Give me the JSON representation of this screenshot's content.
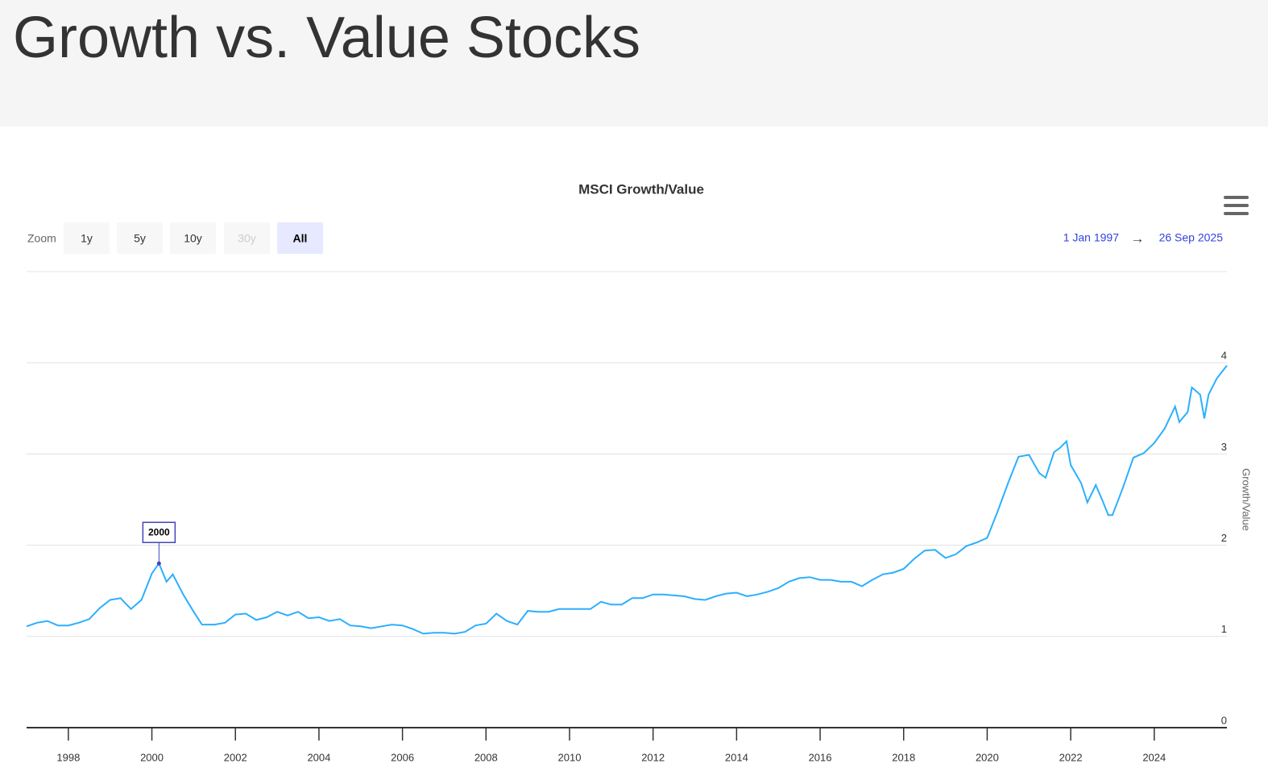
{
  "page_title": "Growth vs. Value Stocks",
  "range_selector": {
    "zoom_label": "Zoom",
    "buttons": [
      "1y",
      "5y",
      "10y",
      "30y",
      "All"
    ],
    "selected": 4,
    "disabled": [
      3
    ],
    "from": "1 Jan 1997",
    "arrow": "→",
    "to": "26 Sep 2025"
  },
  "chart_data": {
    "type": "line",
    "title": "MSCI Growth/Value",
    "y_axis_label": "Growth/Value",
    "x": [
      1997.0,
      1997.25,
      1997.5,
      1997.75,
      1998.0,
      1998.25,
      1998.5,
      1998.75,
      1999.0,
      1999.25,
      1999.5,
      1999.75,
      2000.0,
      2000.17,
      2000.35,
      2000.5,
      2000.75,
      2001.0,
      2001.2,
      2001.5,
      2001.75,
      2002.0,
      2002.25,
      2002.5,
      2002.75,
      2003.0,
      2003.25,
      2003.5,
      2003.75,
      2004.0,
      2004.25,
      2004.5,
      2004.75,
      2005.0,
      2005.25,
      2005.5,
      2005.75,
      2006.0,
      2006.25,
      2006.5,
      2006.75,
      2007.0,
      2007.25,
      2007.5,
      2007.75,
      2008.0,
      2008.25,
      2008.5,
      2008.75,
      2009.0,
      2009.25,
      2009.5,
      2009.75,
      2010.0,
      2010.25,
      2010.5,
      2010.75,
      2011.0,
      2011.25,
      2011.5,
      2011.75,
      2012.0,
      2012.25,
      2012.5,
      2012.75,
      2013.0,
      2013.25,
      2013.5,
      2013.75,
      2014.0,
      2014.25,
      2014.5,
      2014.75,
      2015.0,
      2015.25,
      2015.5,
      2015.75,
      2016.0,
      2016.25,
      2016.5,
      2016.75,
      2017.0,
      2017.25,
      2017.5,
      2017.75,
      2018.0,
      2018.25,
      2018.5,
      2018.75,
      2019.0,
      2019.25,
      2019.5,
      2019.75,
      2020.0,
      2020.25,
      2020.5,
      2020.75,
      2021.0,
      2021.25,
      2021.4,
      2021.6,
      2021.75,
      2021.9,
      2022.0,
      2022.25,
      2022.4,
      2022.6,
      2022.75,
      2022.9,
      2023.0,
      2023.25,
      2023.5,
      2023.75,
      2024.0,
      2024.25,
      2024.5,
      2024.6,
      2024.8,
      2024.9,
      2025.1,
      2025.2,
      2025.3,
      2025.5,
      2025.74
    ],
    "series": [
      {
        "color": "#2caffe",
        "values": [
          1.11,
          1.15,
          1.17,
          1.12,
          1.12,
          1.15,
          1.19,
          1.31,
          1.4,
          1.42,
          1.3,
          1.4,
          1.69,
          1.8,
          1.6,
          1.68,
          1.46,
          1.27,
          1.13,
          1.13,
          1.15,
          1.24,
          1.25,
          1.18,
          1.21,
          1.27,
          1.23,
          1.27,
          1.2,
          1.21,
          1.17,
          1.19,
          1.12,
          1.11,
          1.09,
          1.11,
          1.13,
          1.12,
          1.08,
          1.03,
          1.04,
          1.04,
          1.03,
          1.05,
          1.12,
          1.14,
          1.25,
          1.17,
          1.13,
          1.28,
          1.27,
          1.27,
          1.3,
          1.3,
          1.3,
          1.3,
          1.38,
          1.35,
          1.35,
          1.42,
          1.42,
          1.46,
          1.46,
          1.45,
          1.44,
          1.41,
          1.4,
          1.44,
          1.47,
          1.48,
          1.44,
          1.46,
          1.49,
          1.53,
          1.6,
          1.64,
          1.65,
          1.62,
          1.62,
          1.6,
          1.6,
          1.55,
          1.62,
          1.68,
          1.7,
          1.74,
          1.85,
          1.94,
          1.95,
          1.86,
          1.9,
          1.99,
          2.03,
          2.08,
          2.37,
          2.68,
          2.97,
          2.99,
          2.79,
          2.74,
          3.02,
          3.07,
          3.14,
          2.88,
          2.68,
          2.47,
          2.66,
          2.5,
          2.33,
          2.33,
          2.63,
          2.96,
          3.01,
          3.12,
          3.28,
          3.52,
          3.35,
          3.46,
          3.73,
          3.65,
          3.39,
          3.65,
          3.83,
          3.97
        ]
      }
    ],
    "flags": [
      {
        "x": 2000.17,
        "y": 1.8,
        "title": "2000"
      }
    ],
    "xlim": [
      1997.0,
      2025.74
    ],
    "xticks": [
      1998,
      2000,
      2002,
      2004,
      2006,
      2008,
      2010,
      2012,
      2014,
      2016,
      2018,
      2020,
      2022,
      2024
    ],
    "ylim": [
      0,
      5
    ],
    "yticks": [
      0,
      1,
      2,
      3,
      4
    ],
    "grid": true
  }
}
